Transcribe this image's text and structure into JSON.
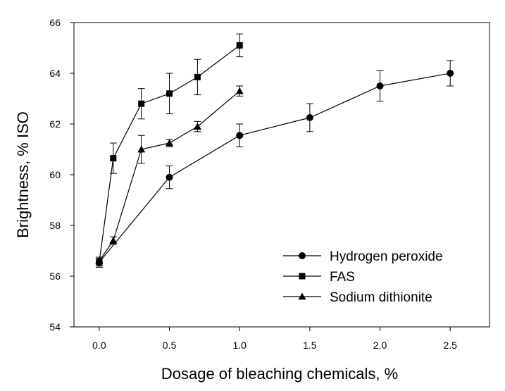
{
  "chart_data": {
    "type": "line",
    "xlabel": "Dosage of bleaching chemicals, %",
    "ylabel": "Brightness, % ISO",
    "xlim": [
      -0.18,
      2.78
    ],
    "ylim": [
      54,
      66
    ],
    "xticks": [
      "0.0",
      "0.5",
      "1.0",
      "1.5",
      "2.0",
      "2.5"
    ],
    "xtick_values": [
      0,
      0.5,
      1.0,
      1.5,
      2.0,
      2.5
    ],
    "yticks": [
      "54",
      "56",
      "58",
      "60",
      "62",
      "64",
      "66"
    ],
    "ytick_values": [
      54,
      56,
      58,
      60,
      62,
      64,
      66
    ],
    "grid": false,
    "legend_position": "bottom-right",
    "series": [
      {
        "name": "Hydrogen peroxide",
        "marker": "circle",
        "x": [
          0,
          0.5,
          1.0,
          1.5,
          2.0,
          2.5
        ],
        "y": [
          56.55,
          59.9,
          61.55,
          62.25,
          63.5,
          64.0
        ],
        "err": [
          0.2,
          0.45,
          0.45,
          0.55,
          0.6,
          0.5
        ]
      },
      {
        "name": "FAS",
        "marker": "square",
        "x": [
          0,
          0.1,
          0.3,
          0.5,
          0.7,
          1.0
        ],
        "y": [
          56.55,
          60.65,
          62.8,
          63.2,
          63.85,
          65.1
        ],
        "err": [
          0.15,
          0.6,
          0.6,
          0.8,
          0.7,
          0.45
        ]
      },
      {
        "name": "Sodium dithionite",
        "marker": "triangle",
        "x": [
          0,
          0.1,
          0.3,
          0.5,
          0.7,
          1.0
        ],
        "y": [
          56.6,
          57.4,
          61.0,
          61.25,
          61.9,
          63.3
        ],
        "err": [
          0.1,
          0.15,
          0.55,
          0.15,
          0.2,
          0.2
        ]
      }
    ]
  }
}
